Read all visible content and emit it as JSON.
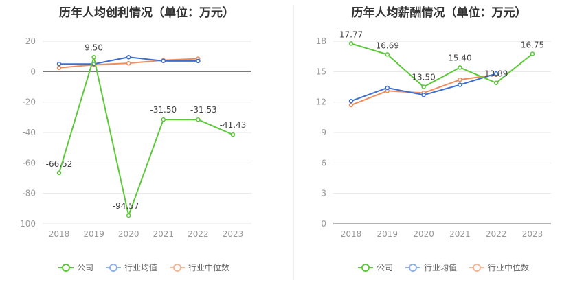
{
  "chart_data": [
    {
      "type": "line",
      "title": "历年人均创利情况（单位：万元）",
      "categories": [
        "2018",
        "2019",
        "2020",
        "2021",
        "2022",
        "2023"
      ],
      "ylim": [
        -100,
        20
      ],
      "yticks": [
        20,
        0,
        -20,
        -40,
        -60,
        -80,
        -100
      ],
      "grid": true,
      "legend_position": "bottom",
      "series": [
        {
          "name": "公司",
          "color": "#5cc83a",
          "labeled": true,
          "values": [
            -66.52,
            9.5,
            -94.57,
            -31.5,
            -31.53,
            -41.43
          ],
          "labels": [
            "-66.52",
            "9.50",
            "-94.57",
            "-31.50",
            "-31.53",
            "-41.43"
          ]
        },
        {
          "name": "行业均值",
          "color": "#3a6fd1",
          "labeled": false,
          "values": [
            5.0,
            5.0,
            9.5,
            7.0,
            7.0,
            null
          ]
        },
        {
          "name": "行业中位数",
          "color": "#f08c5c",
          "labeled": false,
          "values": [
            2.5,
            4.5,
            5.5,
            7.5,
            8.5,
            null
          ]
        }
      ]
    },
    {
      "type": "line",
      "title": "历年人均薪酬情况（单位：万元）",
      "categories": [
        "2018",
        "2019",
        "2020",
        "2021",
        "2022",
        "2023"
      ],
      "ylim": [
        0,
        18
      ],
      "yticks": [
        18,
        15,
        12,
        9,
        6,
        3,
        0
      ],
      "grid": true,
      "legend_position": "bottom",
      "series": [
        {
          "name": "公司",
          "color": "#5cc83a",
          "labeled": true,
          "values": [
            17.77,
            16.69,
            13.5,
            15.4,
            13.89,
            16.75
          ],
          "labels": [
            "17.77",
            "16.69",
            "13.50",
            "15.40",
            "13.89",
            "16.75"
          ]
        },
        {
          "name": "行业均值",
          "color": "#3a6fd1",
          "labeled": false,
          "values": [
            12.1,
            13.4,
            12.7,
            13.7,
            14.8,
            null
          ]
        },
        {
          "name": "行业中位数",
          "color": "#f08c5c",
          "labeled": false,
          "values": [
            11.7,
            13.1,
            12.9,
            14.2,
            14.7,
            null
          ]
        }
      ]
    }
  ],
  "legend": {
    "company": "公司",
    "industry_avg": "行业均值",
    "industry_median": "行业中位数",
    "colors": {
      "company": "#5cc83a",
      "industry_avg": "#8fb0e8",
      "industry_median": "#f5b596"
    }
  }
}
